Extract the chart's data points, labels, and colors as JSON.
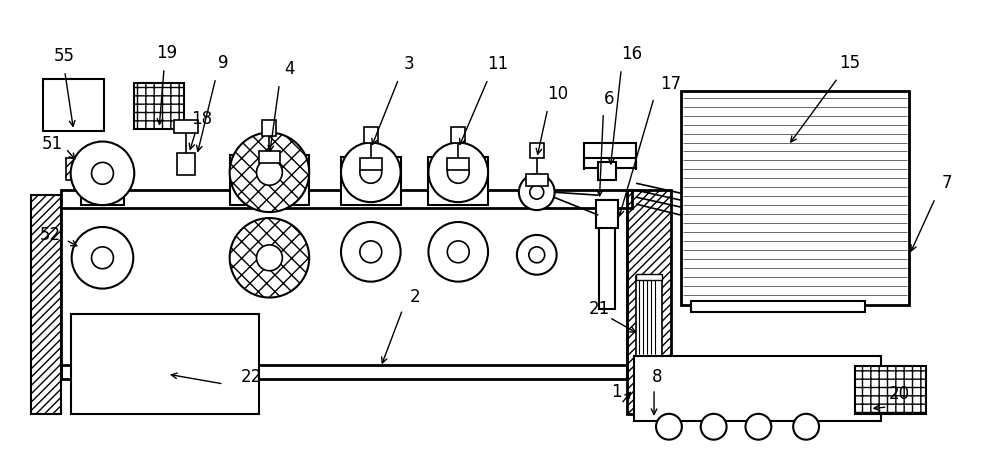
{
  "bg_color": "#ffffff",
  "line_color": "#000000",
  "fig_width": 10.0,
  "fig_height": 4.49
}
